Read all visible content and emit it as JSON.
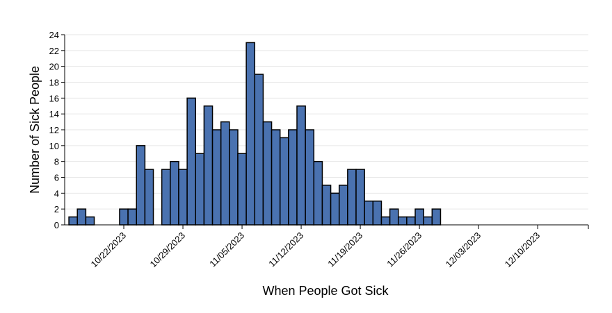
{
  "chart_data": {
    "type": "bar",
    "x_label": "When People Got Sick",
    "y_label": "Number of Sick People",
    "x": [
      "2023-10-16",
      "2023-10-17",
      "2023-10-18",
      "2023-10-19",
      "2023-10-20",
      "2023-10-21",
      "2023-10-22",
      "2023-10-23",
      "2023-10-24",
      "2023-10-25",
      "2023-10-26",
      "2023-10-27",
      "2023-10-28",
      "2023-10-29",
      "2023-10-30",
      "2023-10-31",
      "2023-11-01",
      "2023-11-02",
      "2023-11-03",
      "2023-11-04",
      "2023-11-05",
      "2023-11-06",
      "2023-11-07",
      "2023-11-08",
      "2023-11-09",
      "2023-11-10",
      "2023-11-11",
      "2023-11-12",
      "2023-11-13",
      "2023-11-14",
      "2023-11-15",
      "2023-11-16",
      "2023-11-17",
      "2023-11-18",
      "2023-11-19",
      "2023-11-20",
      "2023-11-21",
      "2023-11-22",
      "2023-11-23",
      "2023-11-24",
      "2023-11-25",
      "2023-11-26",
      "2023-11-27",
      "2023-11-28"
    ],
    "values": [
      1,
      2,
      1,
      0,
      0,
      0,
      2,
      2,
      10,
      7,
      0,
      7,
      8,
      7,
      16,
      9,
      15,
      12,
      13,
      12,
      9,
      23,
      19,
      13,
      12,
      11,
      12,
      15,
      12,
      8,
      5,
      4,
      5,
      7,
      7,
      3,
      3,
      1,
      2,
      1,
      1,
      2,
      1,
      2
    ],
    "color": "#4a72b0",
    "xlim": [
      "2023-10-15",
      "2023-12-16"
    ],
    "xticks": [
      {
        "value": "2023-10-22",
        "label": "10/22/2023"
      },
      {
        "value": "2023-10-29",
        "label": "10/29/2023"
      },
      {
        "value": "2023-11-05",
        "label": "11/05/2023"
      },
      {
        "value": "2023-11-12",
        "label": "11/12/2023"
      },
      {
        "value": "2023-11-19",
        "label": "11/19/2023"
      },
      {
        "value": "2023-11-26",
        "label": "11/26/2023"
      },
      {
        "value": "2023-12-03",
        "label": "12/03/2023"
      },
      {
        "value": "2023-12-10",
        "label": "12/10/2023"
      }
    ],
    "ylim": [
      0,
      24
    ],
    "yticks": [
      0,
      2,
      4,
      6,
      8,
      10,
      12,
      14,
      16,
      18,
      20,
      22,
      24
    ],
    "grid": true
  }
}
